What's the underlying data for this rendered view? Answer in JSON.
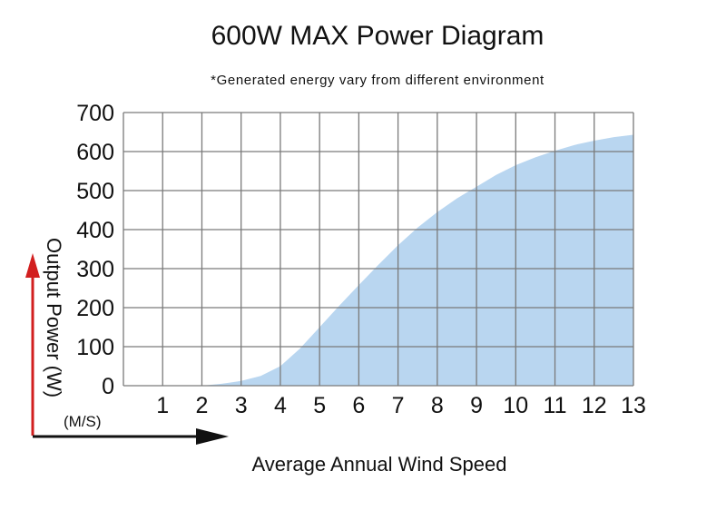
{
  "chart_data": {
    "type": "area",
    "title": "600W MAX Power Diagram",
    "subtitle": "*Generated energy vary from different environment",
    "xlabel": "Average Annual Wind Speed",
    "xunit": "(M/S)",
    "ylabel": "Output Power (W)",
    "x_ticks": [
      "1",
      "2",
      "3",
      "4",
      "5",
      "6",
      "7",
      "8",
      "9",
      "10",
      "11",
      "12",
      "13"
    ],
    "y_ticks": [
      "0",
      "100",
      "200",
      "300",
      "400",
      "500",
      "600",
      "700"
    ],
    "xlim": [
      0,
      13
    ],
    "ylim": [
      0,
      700
    ],
    "grid": true,
    "fill_color": "#b9d6f0",
    "axis_arrow_x_color": "#111111",
    "axis_arrow_y_color": "#d21f1f",
    "series": [
      {
        "x": [
          2,
          2.5,
          3,
          3.5,
          4,
          4.5,
          5,
          5.5,
          6,
          6.5,
          7,
          7.5,
          8,
          8.5,
          9,
          9.5,
          10,
          10.5,
          11,
          11.5,
          12,
          12.5,
          13
        ],
        "values": [
          0,
          5,
          12,
          25,
          50,
          95,
          150,
          205,
          258,
          310,
          360,
          405,
          445,
          480,
          510,
          540,
          565,
          585,
          602,
          617,
          628,
          637,
          643
        ]
      }
    ]
  }
}
